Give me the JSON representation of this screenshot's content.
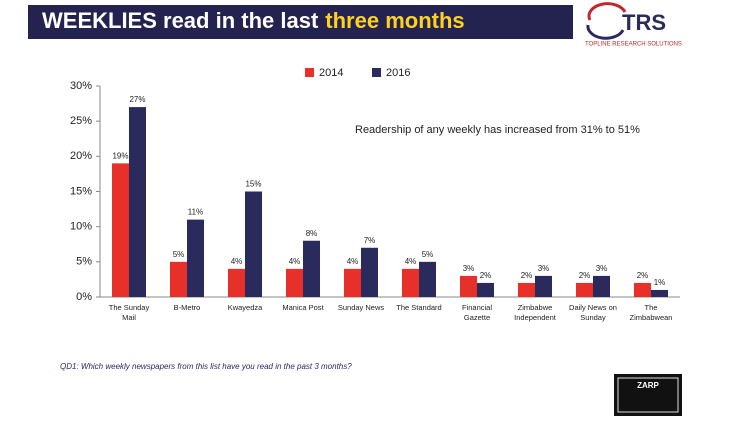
{
  "chart_data": {
    "type": "bar",
    "title": "WEEKLIES  read in the last",
    "title_highlight": "three months",
    "logo": "TRS",
    "logo_subtitle": "TOPLINE RESEARCH SOLUTIONS",
    "annotation": "Readership of any weekly has increased from 31% to 51%",
    "footnote": "QD1: Which weekly newspapers from this list have you read in the past 3 months?",
    "source_logo": "ZARP",
    "categories": [
      "The Sunday\nMail",
      "B-Metro",
      "Kwayedza",
      "Manica Post",
      "Sunday News",
      "The Standard",
      "Financial\nGazette",
      "Zimbabwe\nIndependent",
      "Daily News on\nSunday",
      "The\nZimbabwean"
    ],
    "series": [
      {
        "name": "2014",
        "color": "#e8302a",
        "values": [
          19,
          5,
          4,
          4,
          4,
          4,
          3,
          2,
          2,
          2
        ],
        "value_labels": [
          "19%",
          "5%",
          "4%",
          "4%",
          "4%",
          "4%",
          "3%",
          "2%",
          "2%",
          "2%"
        ]
      },
      {
        "name": "2016",
        "color": "#2b2a5c",
        "values": [
          27,
          11,
          15,
          8,
          7,
          5,
          2,
          3,
          3,
          1
        ],
        "value_labels": [
          "27%",
          "11%",
          "15%",
          "8%",
          "7%",
          "5%",
          "2%",
          "3%",
          "3%",
          "1%"
        ]
      }
    ],
    "ylim": [
      0,
      30
    ],
    "yticks": [
      {
        "value": 0,
        "label": "0%"
      },
      {
        "value": 5,
        "label": "5%"
      },
      {
        "value": 10,
        "label": "10%"
      },
      {
        "value": 15,
        "label": "15%"
      },
      {
        "value": 20,
        "label": "20%"
      },
      {
        "value": 25,
        "label": "25%"
      },
      {
        "value": 30,
        "label": "30%"
      }
    ],
    "legend": "top"
  }
}
